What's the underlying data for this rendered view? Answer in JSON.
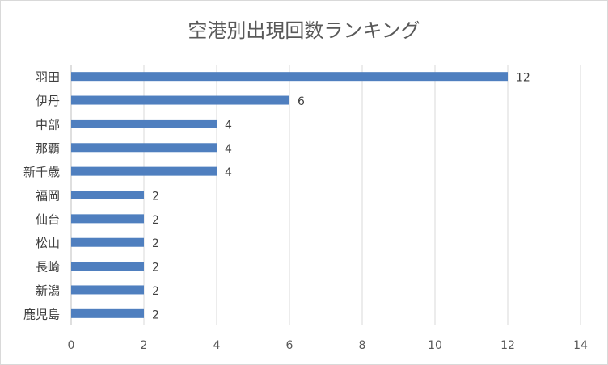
{
  "chart_data": {
    "type": "bar",
    "orientation": "horizontal",
    "title": "空港別出現回数ランキング",
    "categories": [
      "羽田",
      "伊丹",
      "中部",
      "那覇",
      "新千歳",
      "福岡",
      "仙台",
      "松山",
      "長崎",
      "新潟",
      "鹿児島"
    ],
    "values": [
      12,
      6,
      4,
      4,
      4,
      2,
      2,
      2,
      2,
      2,
      2
    ],
    "xlim": [
      0,
      14
    ],
    "xticks": [
      "0",
      "2",
      "4",
      "6",
      "8",
      "10",
      "12",
      "14"
    ],
    "grid": true,
    "legend": "none",
    "data_labels": true,
    "bar_color": "#4f7fbf"
  }
}
